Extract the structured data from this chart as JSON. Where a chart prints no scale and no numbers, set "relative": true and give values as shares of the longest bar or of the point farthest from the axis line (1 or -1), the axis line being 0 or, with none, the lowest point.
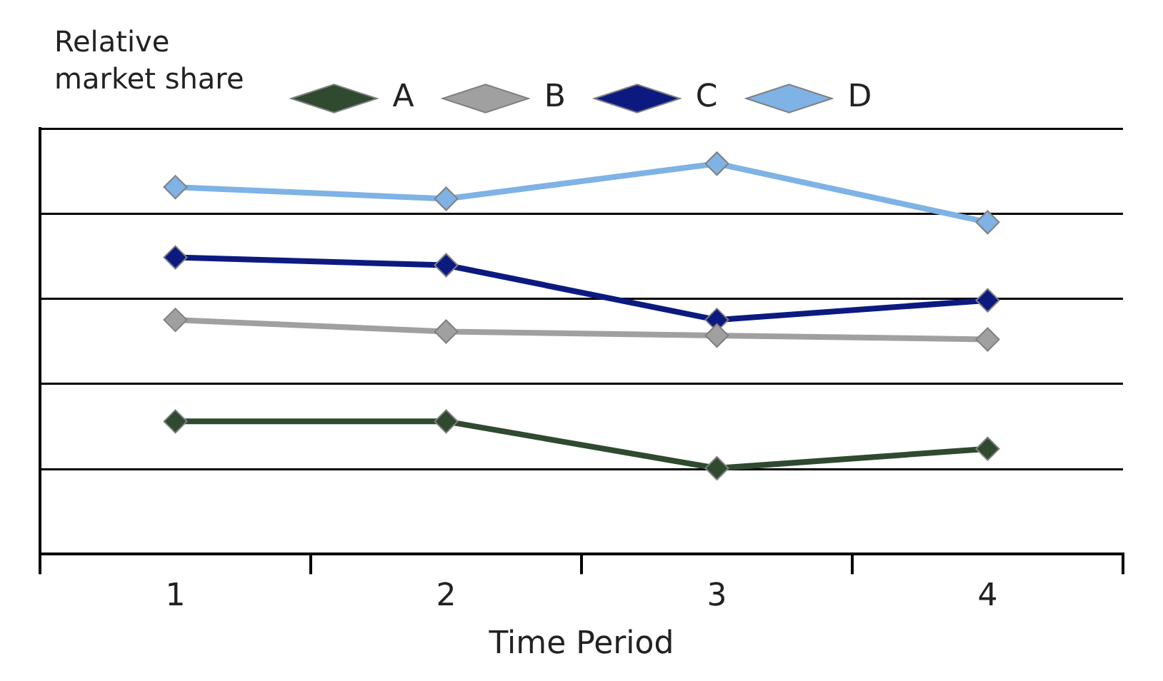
{
  "chart_data": {
    "type": "line",
    "relative": true,
    "ylabel": "Relative market share",
    "xlabel": "Time Period",
    "categories": [
      "1",
      "2",
      "3",
      "4"
    ],
    "marker": "diamond",
    "line_style": "solid",
    "grid": "y",
    "legend": "top",
    "series": [
      {
        "name": "A",
        "color": "#2f4a2f",
        "values": [
          0.34,
          0.34,
          0.22,
          0.27
        ]
      },
      {
        "name": "B",
        "color": "#a0a0a0",
        "values": [
          0.6,
          0.57,
          0.56,
          0.55
        ]
      },
      {
        "name": "C",
        "color": "#0c1a80",
        "values": [
          0.76,
          0.74,
          0.6,
          0.65
        ]
      },
      {
        "name": "D",
        "color": "#7fb2e5",
        "values": [
          0.94,
          0.91,
          1,
          0.85
        ]
      }
    ]
  }
}
